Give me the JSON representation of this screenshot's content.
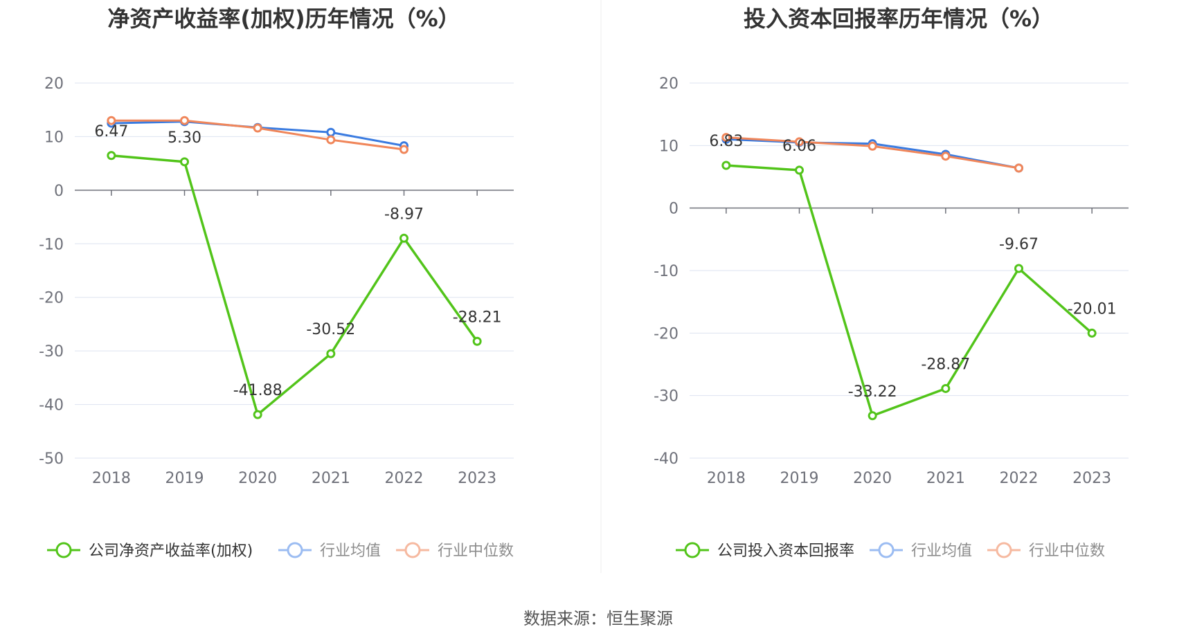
{
  "source": "数据来源：恒生聚源",
  "colors": {
    "company": "#52c41a",
    "average": "#3a7be0",
    "median": "#f0865a",
    "grid": "#dde3f0",
    "axis": "#6e7079"
  },
  "chart_data": [
    {
      "type": "line",
      "title": "净资产收益率(加权)历年情况（%）",
      "categories": [
        "2018",
        "2019",
        "2020",
        "2021",
        "2022",
        "2023"
      ],
      "ylim": [
        -50,
        20
      ],
      "yticks": [
        20,
        10,
        0,
        -10,
        -20,
        -30,
        -40,
        -50
      ],
      "grid": true,
      "legend_position": "bottom",
      "series": [
        {
          "name": "公司净资产收益率(加权)",
          "values": [
            6.47,
            5.3,
            -41.88,
            -30.52,
            -8.97,
            -28.21
          ],
          "labels": [
            "6.47",
            "5.30",
            "-41.88",
            "-30.52",
            "-8.97",
            "-28.21"
          ],
          "color_key": "company"
        },
        {
          "name": "行业均值",
          "values": [
            12.5,
            12.8,
            11.7,
            10.8,
            8.3,
            null
          ],
          "color_key": "average"
        },
        {
          "name": "行业中位数",
          "values": [
            13.0,
            13.0,
            11.6,
            9.4,
            7.6,
            null
          ],
          "color_key": "median"
        }
      ]
    },
    {
      "type": "line",
      "title": "投入资本回报率历年情况（%）",
      "categories": [
        "2018",
        "2019",
        "2020",
        "2021",
        "2022",
        "2023"
      ],
      "ylim": [
        -40,
        20
      ],
      "yticks": [
        20,
        10,
        0,
        -10,
        -20,
        -30,
        -40
      ],
      "grid": true,
      "legend_position": "bottom",
      "series": [
        {
          "name": "公司投入资本回报率",
          "values": [
            6.83,
            6.06,
            -33.22,
            -28.87,
            -9.67,
            -20.01
          ],
          "labels": [
            "6.83",
            "6.06",
            "-33.22",
            "-28.87",
            "-9.67",
            "-20.01"
          ],
          "color_key": "company"
        },
        {
          "name": "行业均值",
          "values": [
            11.0,
            10.5,
            10.3,
            8.6,
            6.4,
            null
          ],
          "color_key": "average"
        },
        {
          "name": "行业中位数",
          "values": [
            11.3,
            10.6,
            9.9,
            8.3,
            6.4,
            null
          ],
          "color_key": "median"
        }
      ]
    }
  ]
}
